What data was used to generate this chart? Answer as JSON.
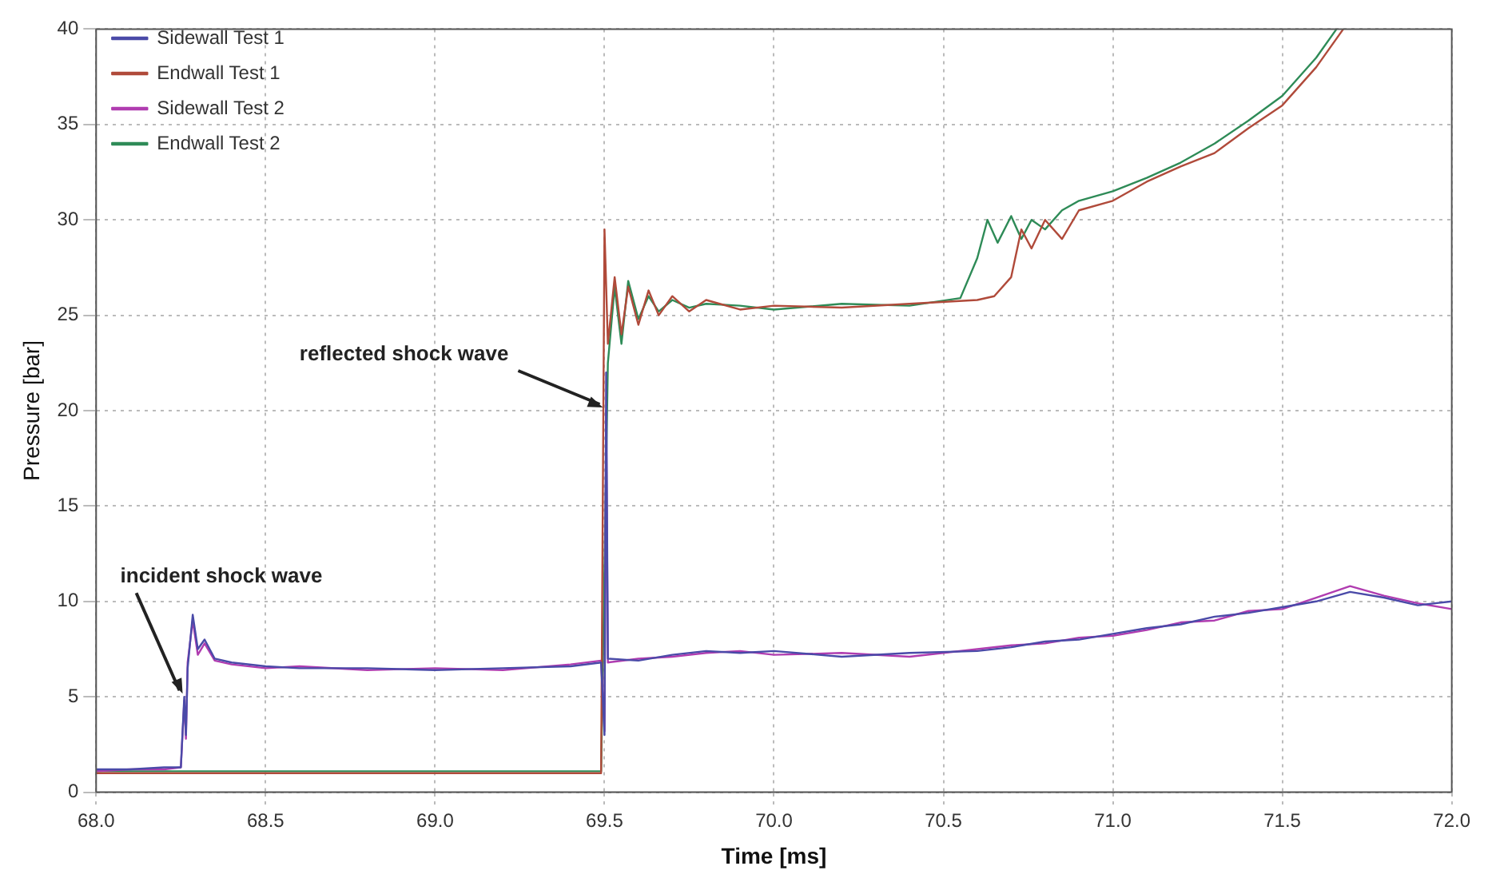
{
  "chart_data": {
    "type": "line",
    "xlabel": "Time [ms]",
    "ylabel": "Pressure [bar]",
    "xlim": [
      68.0,
      72.0
    ],
    "ylim": [
      0,
      40
    ],
    "xticks": [
      {
        "value": 68.0,
        "label": "68.0"
      },
      {
        "value": 68.5,
        "label": "68.5"
      },
      {
        "value": 69.0,
        "label": "69.0"
      },
      {
        "value": 69.5,
        "label": "69.5"
      },
      {
        "value": 70.0,
        "label": "70.0"
      },
      {
        "value": 70.5,
        "label": "70.5"
      },
      {
        "value": 71.0,
        "label": "71.0"
      },
      {
        "value": 71.5,
        "label": "71.5"
      },
      {
        "value": 72.0,
        "label": "72.0"
      }
    ],
    "yticks": [
      0,
      5,
      10,
      15,
      20,
      25,
      30,
      35,
      40
    ],
    "grid": true,
    "legend": "top left",
    "marker": "none",
    "line_style": "solid",
    "annotations": [
      {
        "text": "incident shock wave",
        "x": 68.26,
        "y": 5
      },
      {
        "text": "reflected shock wave",
        "x": 69.5,
        "y": 20
      }
    ],
    "series": [
      {
        "name": "Sidewall Test 1",
        "color": "#4a4aa8",
        "x": [
          68.0,
          68.1,
          68.2,
          68.25,
          68.26,
          68.265,
          68.27,
          68.285,
          68.3,
          68.32,
          68.35,
          68.4,
          68.5,
          68.6,
          68.8,
          69.0,
          69.2,
          69.4,
          69.49,
          69.5,
          69.505,
          69.51,
          69.6,
          69.7,
          69.8,
          69.9,
          70.0,
          70.2,
          70.4,
          70.6,
          70.7,
          70.8,
          70.9,
          71.0,
          71.1,
          71.2,
          71.3,
          71.4,
          71.5,
          71.6,
          71.7,
          71.8,
          71.9,
          72.0
        ],
        "values": [
          1.2,
          1.2,
          1.3,
          1.3,
          5.0,
          3.0,
          6.5,
          9.3,
          7.5,
          8.0,
          7.0,
          6.8,
          6.6,
          6.5,
          6.5,
          6.4,
          6.5,
          6.6,
          6.8,
          3.0,
          22.0,
          7.0,
          6.9,
          7.2,
          7.4,
          7.3,
          7.4,
          7.1,
          7.3,
          7.4,
          7.6,
          7.9,
          8.0,
          8.3,
          8.6,
          8.8,
          9.2,
          9.4,
          9.7,
          10.0,
          10.5,
          10.2,
          9.8,
          10.0
        ]
      },
      {
        "name": "Endwall Test 1",
        "color": "#b04a3a",
        "x": [
          68.0,
          68.5,
          69.0,
          69.49,
          69.5,
          69.51,
          69.53,
          69.55,
          69.57,
          69.6,
          69.63,
          69.66,
          69.7,
          69.75,
          69.8,
          69.9,
          70.0,
          70.2,
          70.4,
          70.6,
          70.65,
          70.7,
          70.73,
          70.76,
          70.8,
          70.85,
          70.9,
          71.0,
          71.1,
          71.2,
          71.3,
          71.4,
          71.5,
          71.6,
          71.68
        ],
        "values": [
          1.0,
          1.0,
          1.0,
          1.0,
          29.5,
          23.5,
          27.0,
          24.0,
          26.5,
          24.5,
          26.3,
          25.0,
          26.0,
          25.2,
          25.8,
          25.3,
          25.5,
          25.4,
          25.6,
          25.8,
          26.0,
          27.0,
          29.5,
          28.5,
          30.0,
          29.0,
          30.5,
          31.0,
          32.0,
          32.8,
          33.5,
          34.8,
          36.0,
          38.0,
          40.0
        ]
      },
      {
        "name": "Sidewall Test 2",
        "color": "#b03cb0",
        "x": [
          68.0,
          68.1,
          68.2,
          68.25,
          68.26,
          68.265,
          68.27,
          68.285,
          68.3,
          68.32,
          68.35,
          68.4,
          68.5,
          68.6,
          68.8,
          69.0,
          69.2,
          69.4,
          69.49,
          69.5,
          69.505,
          69.51,
          69.6,
          69.7,
          69.8,
          69.9,
          70.0,
          70.2,
          70.4,
          70.6,
          70.7,
          70.8,
          70.9,
          71.0,
          71.1,
          71.2,
          71.3,
          71.4,
          71.5,
          71.6,
          71.7,
          71.8,
          71.9,
          72.0
        ],
        "values": [
          1.1,
          1.2,
          1.2,
          1.3,
          4.8,
          2.8,
          6.8,
          9.0,
          7.2,
          7.8,
          6.9,
          6.7,
          6.5,
          6.6,
          6.4,
          6.5,
          6.4,
          6.7,
          6.9,
          3.2,
          20.0,
          6.8,
          7.0,
          7.1,
          7.3,
          7.4,
          7.2,
          7.3,
          7.1,
          7.5,
          7.7,
          7.8,
          8.1,
          8.2,
          8.5,
          8.9,
          9.0,
          9.5,
          9.6,
          10.2,
          10.8,
          10.3,
          9.9,
          9.6
        ]
      },
      {
        "name": "Endwall Test 2",
        "color": "#2e8b57",
        "x": [
          68.0,
          68.5,
          69.0,
          69.49,
          69.5,
          69.51,
          69.53,
          69.55,
          69.57,
          69.6,
          69.63,
          69.66,
          69.7,
          69.75,
          69.8,
          69.9,
          70.0,
          70.2,
          70.4,
          70.55,
          70.6,
          70.63,
          70.66,
          70.7,
          70.73,
          70.76,
          70.8,
          70.85,
          70.9,
          71.0,
          71.1,
          71.2,
          71.3,
          71.4,
          71.5,
          71.6,
          71.66
        ],
        "values": [
          1.1,
          1.1,
          1.1,
          1.1,
          null,
          22.5,
          26.5,
          23.5,
          26.8,
          24.8,
          26.0,
          25.2,
          25.8,
          25.4,
          25.6,
          25.5,
          25.3,
          25.6,
          25.5,
          25.9,
          28.0,
          30.0,
          28.8,
          30.2,
          29.0,
          30.0,
          29.5,
          30.5,
          31.0,
          31.5,
          32.2,
          33.0,
          34.0,
          35.2,
          36.5,
          38.5,
          40.0
        ]
      }
    ]
  }
}
